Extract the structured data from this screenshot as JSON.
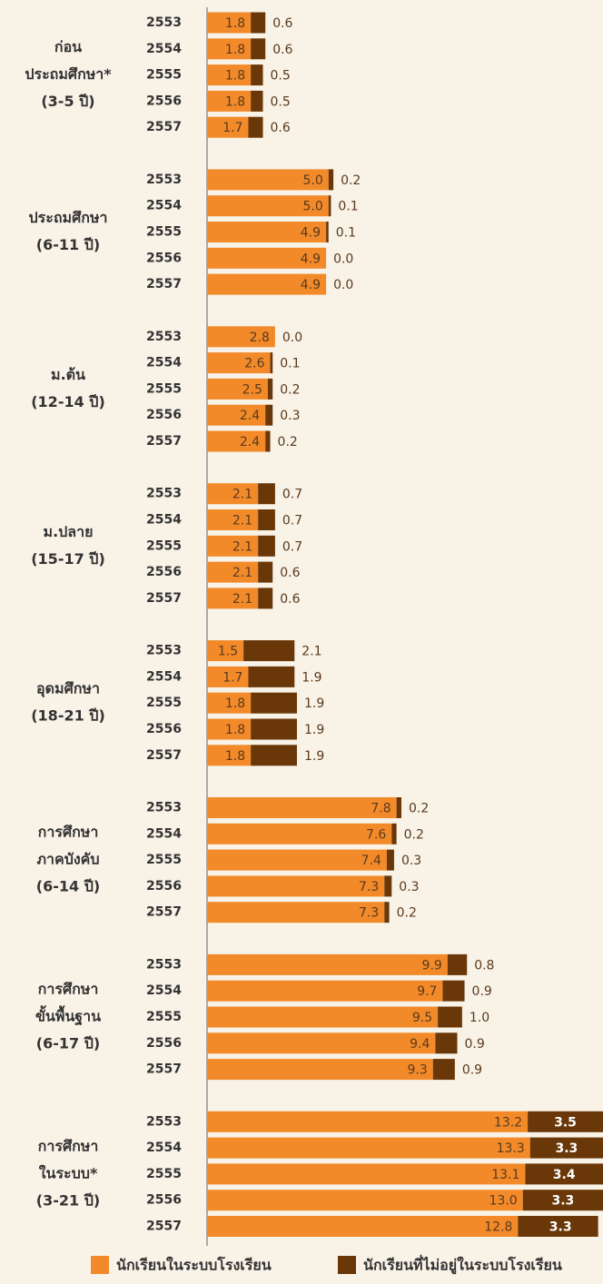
{
  "chart_data": {
    "type": "bar",
    "stacked": true,
    "orientation": "horizontal",
    "xlim": [
      0,
      16.3
    ],
    "series": [
      {
        "name": "นักเรียนในระบบโรงเรียน",
        "color": "#f28a2a"
      },
      {
        "name": "นักเรียนที่ไม่อยู่ในระบบโรงเรียน",
        "color": "#6a3708"
      }
    ],
    "groups": [
      {
        "label": [
          "ก่อน",
          "ประถมศึกษา*",
          "(3-5 ปี)"
        ],
        "categories": [
          "2553",
          "2554",
          "2555",
          "2556",
          "2557"
        ],
        "series": [
          {
            "values": [
              1.8,
              1.8,
              1.8,
              1.8,
              1.7
            ],
            "value_labels": [
              "1.8",
              "1.8",
              "1.8",
              "1.8",
              "1.7"
            ]
          },
          {
            "values": [
              0.6,
              0.6,
              0.5,
              0.5,
              0.6
            ],
            "value_labels": [
              "0.6",
              "0.6",
              "0.5",
              "0.5",
              "0.6"
            ]
          }
        ]
      },
      {
        "label": [
          "ประถมศึกษา",
          "(6-11 ปี)"
        ],
        "categories": [
          "2553",
          "2554",
          "2555",
          "2556",
          "2557"
        ],
        "series": [
          {
            "values": [
              5.0,
              5.0,
              4.9,
              4.9,
              4.9
            ],
            "value_labels": [
              "5.0",
              "5.0",
              "4.9",
              "4.9",
              "4.9"
            ]
          },
          {
            "values": [
              0.2,
              0.1,
              0.1,
              0.0,
              0.0
            ],
            "value_labels": [
              "0.2",
              "0.1",
              "0.1",
              "0.0",
              "0.0"
            ]
          }
        ]
      },
      {
        "label": [
          "ม.ต้น",
          "(12-14 ปี)"
        ],
        "categories": [
          "2553",
          "2554",
          "2555",
          "2556",
          "2557"
        ],
        "series": [
          {
            "values": [
              2.8,
              2.6,
              2.5,
              2.4,
              2.4
            ],
            "value_labels": [
              "2.8",
              "2.6",
              "2.5",
              "2.4",
              "2.4"
            ]
          },
          {
            "values": [
              0.0,
              0.1,
              0.2,
              0.3,
              0.2
            ],
            "value_labels": [
              "0.0",
              "0.1",
              "0.2",
              "0.3",
              "0.2"
            ]
          }
        ]
      },
      {
        "label": [
          "ม.ปลาย",
          "(15-17 ปี)"
        ],
        "categories": [
          "2553",
          "2554",
          "2555",
          "2556",
          "2557"
        ],
        "series": [
          {
            "values": [
              2.1,
              2.1,
              2.1,
              2.1,
              2.1
            ],
            "value_labels": [
              "2.1",
              "2.1",
              "2.1",
              "2.1",
              "2.1"
            ]
          },
          {
            "values": [
              0.7,
              0.7,
              0.7,
              0.6,
              0.6
            ],
            "value_labels": [
              "0.7",
              "0.7",
              "0.7",
              "0.6",
              "0.6"
            ]
          }
        ]
      },
      {
        "label": [
          "อุดมศึกษา",
          "(18-21 ปี)"
        ],
        "categories": [
          "2553",
          "2554",
          "2555",
          "2556",
          "2557"
        ],
        "series": [
          {
            "values": [
              1.5,
              1.7,
              1.8,
              1.8,
              1.8
            ],
            "value_labels": [
              "1.5",
              "1.7",
              "1.8",
              "1.8",
              "1.8"
            ]
          },
          {
            "values": [
              2.1,
              1.9,
              1.9,
              1.9,
              1.9
            ],
            "value_labels": [
              "2.1",
              "1.9",
              "1.9",
              "1.9",
              "1.9"
            ]
          }
        ]
      },
      {
        "label": [
          "การศึกษา",
          "ภาคบังคับ",
          "(6-14 ปี)"
        ],
        "categories": [
          "2553",
          "2554",
          "2555",
          "2556",
          "2557"
        ],
        "series": [
          {
            "values": [
              7.8,
              7.6,
              7.4,
              7.3,
              7.3
            ],
            "value_labels": [
              "7.8",
              "7.6",
              "7.4",
              "7.3",
              "7.3"
            ]
          },
          {
            "values": [
              0.2,
              0.2,
              0.3,
              0.3,
              0.2
            ],
            "value_labels": [
              "0.2",
              "0.2",
              "0.3",
              "0.3",
              "0.2"
            ]
          }
        ]
      },
      {
        "label": [
          "การศึกษา",
          "ขั้นพื้นฐาน",
          "(6-17 ปี)"
        ],
        "categories": [
          "2553",
          "2554",
          "2555",
          "2556",
          "2557"
        ],
        "series": [
          {
            "values": [
              9.9,
              9.7,
              9.5,
              9.4,
              9.3
            ],
            "value_labels": [
              "9.9",
              "9.7",
              "9.5",
              "9.4",
              "9.3"
            ]
          },
          {
            "values": [
              0.8,
              0.9,
              1.0,
              0.9,
              0.9
            ],
            "value_labels": [
              "0.8",
              "0.9",
              "1.0",
              "0.9",
              "0.9"
            ]
          }
        ]
      },
      {
        "label": [
          "การศึกษา",
          "ในระบบ*",
          "(3-21 ปี)"
        ],
        "categories": [
          "2553",
          "2554",
          "2555",
          "2556",
          "2557"
        ],
        "series": [
          {
            "values": [
              13.2,
              13.3,
              13.1,
              13.0,
              12.8
            ],
            "value_labels": [
              "13.2",
              "13.3",
              "13.1",
              "13.0",
              "12.8"
            ]
          },
          {
            "values": [
              3.5,
              3.3,
              3.4,
              3.3,
              3.3
            ],
            "value_labels": [
              "3.5",
              "3.3",
              "3.4",
              "3.3",
              "3.3"
            ]
          }
        ]
      }
    ]
  }
}
